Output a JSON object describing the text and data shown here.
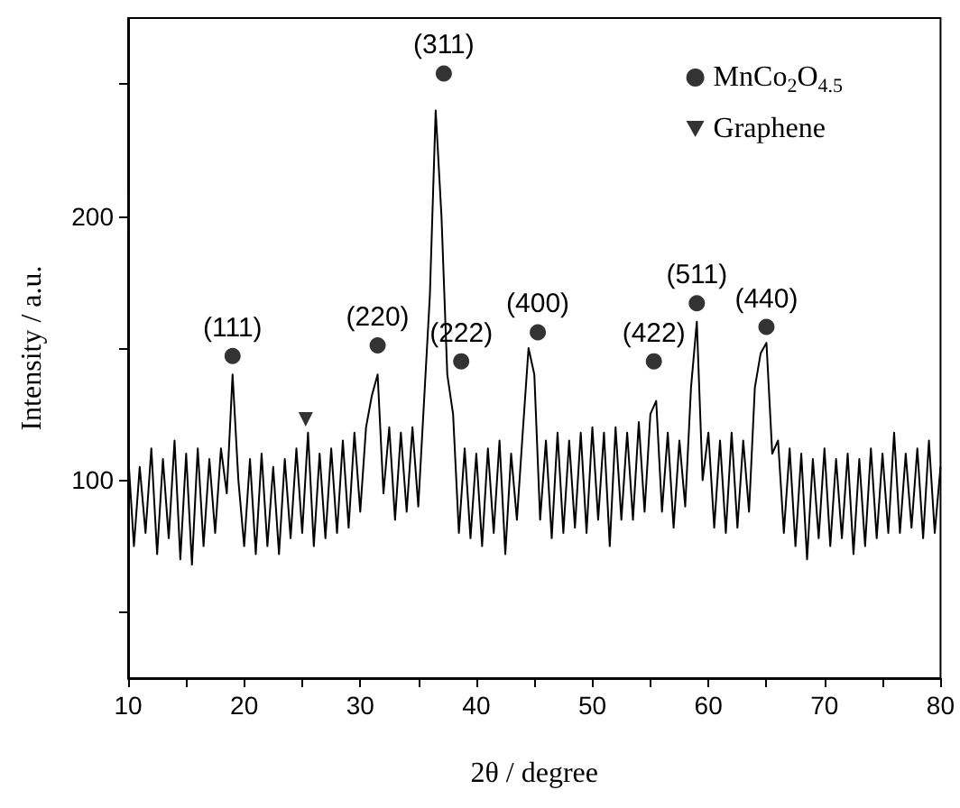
{
  "chart_data": {
    "type": "line",
    "xlabel": "2θ / degree",
    "ylabel": "Intensity / a.u.",
    "xlim": [
      10,
      80
    ],
    "ylim": [
      25,
      275
    ],
    "xticks": [
      10,
      {
        "value": 15,
        "label": null
      },
      20,
      {
        "value": 25,
        "label": null
      },
      30,
      {
        "value": 35,
        "label": null
      },
      40,
      {
        "value": 45,
        "label": null
      },
      50,
      {
        "value": 55,
        "label": null
      },
      60,
      {
        "value": 65,
        "label": null
      },
      70,
      {
        "value": 75,
        "label": null
      },
      80
    ],
    "yticks": [
      {
        "value": 50,
        "label": null
      },
      100,
      {
        "value": 150,
        "label": null
      },
      200,
      {
        "value": 250,
        "label": null
      }
    ],
    "grid": false,
    "legend": "top right",
    "line_style": "solid",
    "series": [
      {
        "color": "#000000",
        "marker": "none",
        "x": [
          10,
          10.5,
          11,
          11.5,
          12,
          12.5,
          13,
          13.5,
          14,
          14.5,
          15,
          15.5,
          16,
          16.5,
          17,
          17.5,
          18,
          18.5,
          19,
          19.5,
          20,
          20.5,
          21,
          21.5,
          22,
          22.5,
          23,
          23.5,
          24,
          24.5,
          25,
          25.5,
          26,
          26.5,
          27,
          27.5,
          28,
          28.5,
          29,
          29.5,
          30,
          30.5,
          31,
          31.5,
          32,
          32.5,
          33,
          33.5,
          34,
          34.5,
          35,
          35.5,
          36,
          36.5,
          37,
          37.5,
          38,
          38.5,
          39,
          39.5,
          40,
          40.5,
          41,
          41.5,
          42,
          42.5,
          43,
          43.5,
          44,
          44.5,
          45,
          45.5,
          46,
          46.5,
          47,
          47.5,
          48,
          48.5,
          49,
          49.5,
          50,
          50.5,
          51,
          51.5,
          52,
          52.5,
          53,
          53.5,
          54,
          54.5,
          55,
          55.5,
          56,
          56.5,
          57,
          57.5,
          58,
          58.5,
          59,
          59.5,
          60,
          60.5,
          61,
          61.5,
          62,
          62.5,
          63,
          63.5,
          64,
          64.5,
          65,
          65.5,
          66,
          66.5,
          67,
          67.5,
          68,
          68.5,
          69,
          69.5,
          70,
          70.5,
          71,
          71.5,
          72,
          72.5,
          73,
          73.5,
          74,
          74.5,
          75,
          75.5,
          76,
          76.5,
          77,
          77.5,
          78,
          78.5,
          79,
          79.5,
          80
        ],
        "values": [
          110,
          75,
          105,
          80,
          112,
          72,
          108,
          78,
          115,
          70,
          110,
          68,
          112,
          75,
          108,
          80,
          112,
          95,
          140,
          100,
          75,
          108,
          72,
          110,
          75,
          105,
          72,
          108,
          78,
          112,
          80,
          118,
          75,
          110,
          78,
          112,
          80,
          115,
          82,
          118,
          88,
          120,
          132,
          140,
          95,
          120,
          85,
          118,
          88,
          120,
          90,
          130,
          170,
          240,
          200,
          140,
          125,
          80,
          112,
          78,
          110,
          75,
          112,
          80,
          115,
          72,
          110,
          85,
          118,
          150,
          140,
          85,
          115,
          78,
          118,
          80,
          115,
          82,
          118,
          80,
          120,
          85,
          118,
          75,
          120,
          85,
          118,
          85,
          122,
          88,
          125,
          130,
          88,
          118,
          82,
          115,
          90,
          135,
          160,
          100,
          118,
          82,
          115,
          80,
          118,
          82,
          115,
          88,
          135,
          148,
          152,
          110,
          115,
          80,
          112,
          75,
          110,
          70,
          108,
          78,
          112,
          75,
          108,
          78,
          110,
          72,
          108,
          75,
          112,
          78,
          110,
          80,
          118,
          80,
          110,
          82,
          112,
          78,
          115,
          80,
          105
        ]
      },
      {
        "type": "scatter",
        "name": "MnCo$_{2}$O$_{4.5}$",
        "color": "#000000",
        "marker": "circle",
        "x": [
          19.0,
          31.5,
          37.2,
          38.7,
          45.3,
          55.3,
          59.0,
          65.0
        ],
        "values": [
          147,
          151,
          254,
          145,
          156,
          145,
          167,
          158
        ]
      },
      {
        "type": "scatter",
        "name": "Graphene",
        "color": "#000000",
        "marker": "triangle",
        "x": [
          25.3
        ],
        "values": [
          123
        ]
      }
    ],
    "annotations": [
      {
        "text": "(111)",
        "x": 19.0,
        "y": 147
      },
      {
        "text": "(220)",
        "x": 31.5,
        "y": 151
      },
      {
        "text": "(311)",
        "x": 37.2,
        "y": 254
      },
      {
        "text": "(222)",
        "x": 38.7,
        "y": 145
      },
      {
        "text": "(400)",
        "x": 45.3,
        "y": 156
      },
      {
        "text": "(422)",
        "x": 55.3,
        "y": 145
      },
      {
        "text": "(511)",
        "x": 59.0,
        "y": 167
      },
      {
        "text": "(440)",
        "x": 65.0,
        "y": 158
      }
    ]
  }
}
